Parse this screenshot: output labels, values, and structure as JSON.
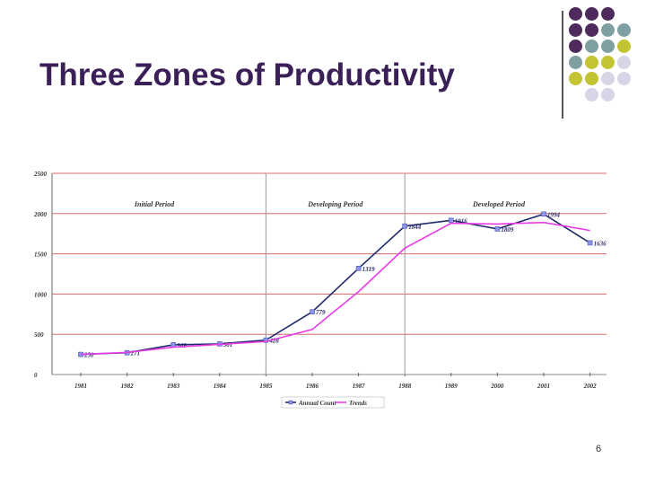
{
  "slide": {
    "title": "Three Zones of Productivity",
    "page_number": "6"
  },
  "colors": {
    "title": "#3b1f57",
    "dot_purple": "#4f2a5d",
    "dot_teal": "#7fa0a3",
    "dot_olive": "#c2c434",
    "dot_lavender": "#d6d6e6",
    "annual_count": "#1f2a6b",
    "trends": "#e83be8",
    "gridline": "#d86a6a",
    "zone_divider": "#999999"
  },
  "decoration": {
    "dot_grid": [
      [
        "dot_purple",
        "dot_purple",
        "dot_purple",
        null
      ],
      [
        "dot_purple",
        "dot_purple",
        "dot_teal",
        "dot_teal"
      ],
      [
        "dot_purple",
        "dot_teal",
        "dot_teal",
        "dot_olive"
      ],
      [
        "dot_teal",
        "dot_olive",
        "dot_olive",
        "dot_lavender"
      ],
      [
        "dot_olive",
        "dot_olive",
        "dot_lavender",
        "dot_lavender"
      ],
      [
        null,
        "dot_lavender",
        "dot_lavender",
        null
      ]
    ]
  },
  "chart_data": {
    "type": "line",
    "title": "",
    "xlabel": "",
    "ylabel": "",
    "categories": [
      "1981",
      "1982",
      "1983",
      "1984",
      "1985",
      "1986",
      "1987",
      "1988",
      "1989",
      "2000",
      "2001",
      "2002"
    ],
    "ylim": [
      0,
      2500
    ],
    "yticks": [
      "0",
      "500",
      "1000",
      "1500",
      "2000",
      "2500"
    ],
    "grid": true,
    "legend_position": "bottom",
    "series": [
      {
        "name": "Annual Count",
        "values": [
          250,
          271,
          369,
          381,
          428,
          779,
          1319,
          1844,
          1916,
          1809,
          1994,
          1636
        ],
        "labels": [
          "250",
          "271",
          "369",
          "381",
          "428",
          "779",
          "1319",
          "1844",
          "1916",
          "1809",
          "1994",
          "1636"
        ]
      },
      {
        "name": "Trends",
        "values": [
          250,
          275,
          340,
          375,
          410,
          560,
          1030,
          1570,
          1880,
          1870,
          1890,
          1790
        ]
      }
    ],
    "zones": [
      {
        "label": "Initial Period",
        "from": "1981",
        "to": "1985"
      },
      {
        "label": "Developing Period",
        "from": "1985",
        "to": "1988"
      },
      {
        "label": "Developed Period",
        "from": "1988",
        "to": "2002"
      }
    ]
  }
}
